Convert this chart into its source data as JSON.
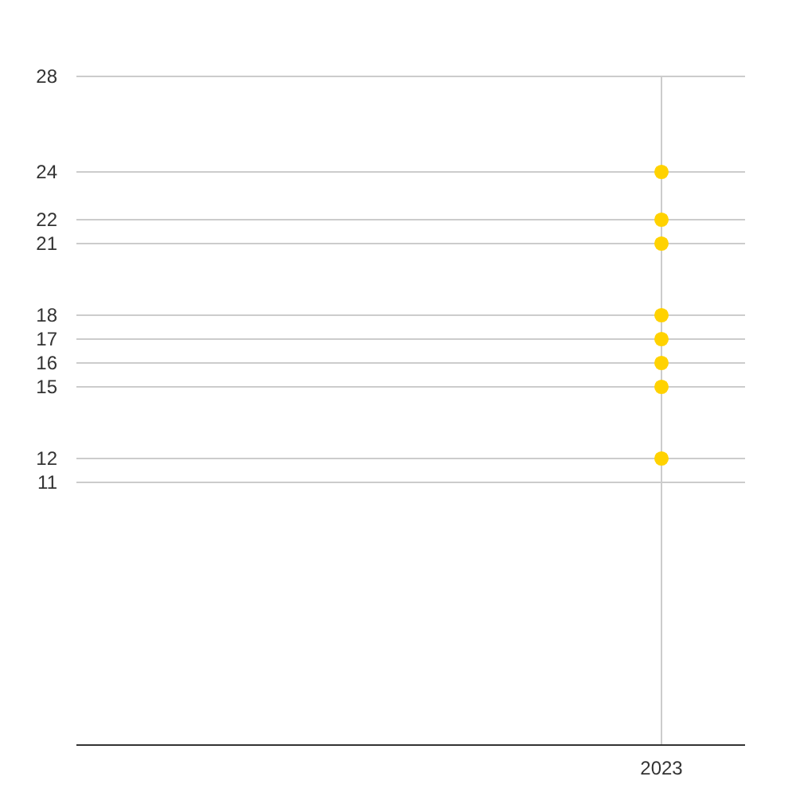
{
  "chart_data": {
    "type": "scatter",
    "categories": [
      "2023"
    ],
    "marker": "circle",
    "series": [
      {
        "color": "#ffd200",
        "values": [
          24
        ]
      },
      {
        "color": "#ffd200",
        "values": [
          22
        ]
      },
      {
        "color": "#ffd200",
        "values": [
          21
        ]
      },
      {
        "color": "#ffd200",
        "values": [
          18
        ]
      },
      {
        "color": "#ffd200",
        "values": [
          17
        ]
      },
      {
        "color": "#ffd200",
        "values": [
          16
        ]
      },
      {
        "color": "#ffd200",
        "values": [
          15
        ]
      },
      {
        "color": "#ffd200",
        "values": [
          12
        ]
      }
    ],
    "ylim": [
      0,
      28
    ],
    "yticks": [
      11,
      12,
      15,
      16,
      17,
      18,
      21,
      22,
      24,
      28
    ],
    "grid": true
  }
}
